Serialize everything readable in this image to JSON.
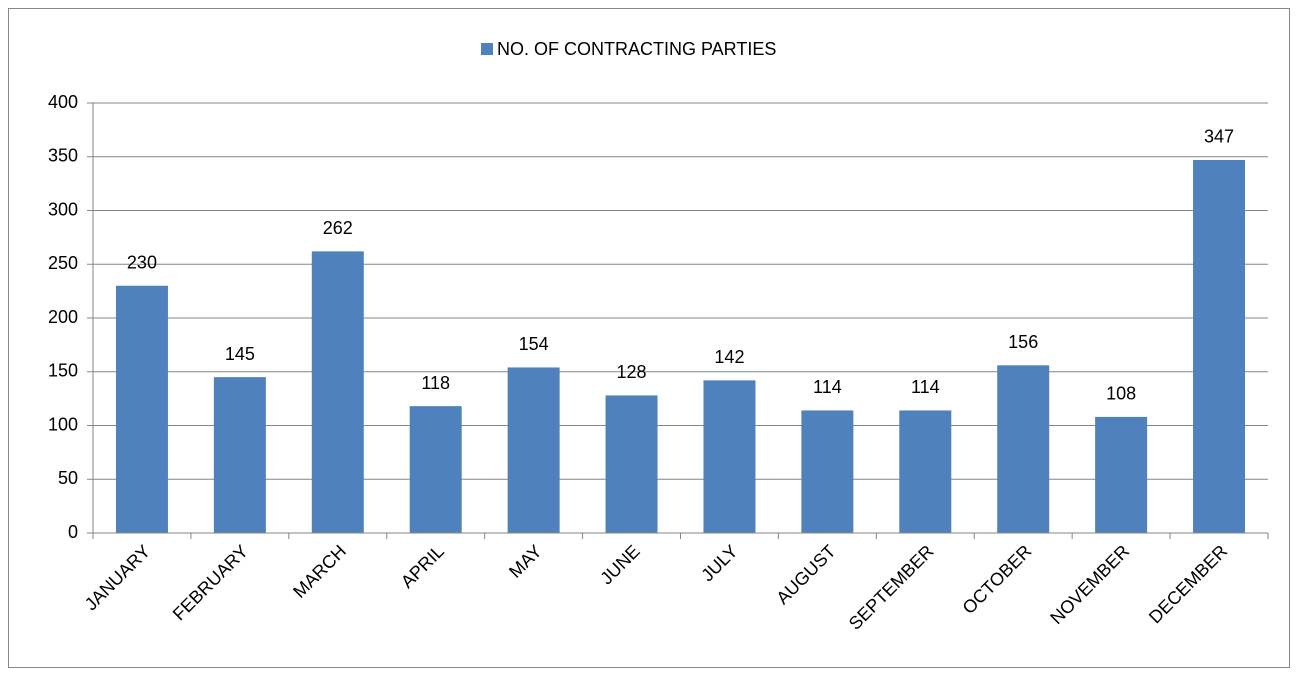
{
  "chart_data": {
    "type": "bar",
    "categories": [
      "JANUARY",
      "FEBRUARY",
      "MARCH",
      "APRIL",
      "MAY",
      "JUNE",
      "JULY",
      "AUGUST",
      "SEPTEMBER",
      "OCTOBER",
      "NOVEMBER",
      "DECEMBER"
    ],
    "series": [
      {
        "name": "NO. OF CONTRACTING PARTIES",
        "color": "#4f81bd",
        "values": [
          230,
          145,
          262,
          118,
          154,
          128,
          142,
          114,
          114,
          156,
          108,
          347
        ]
      }
    ],
    "ylim": [
      0,
      400
    ],
    "yticks": [
      0,
      50,
      100,
      150,
      200,
      250,
      300,
      350,
      400
    ],
    "grid": true,
    "legend": "top",
    "data_labels": true
  }
}
